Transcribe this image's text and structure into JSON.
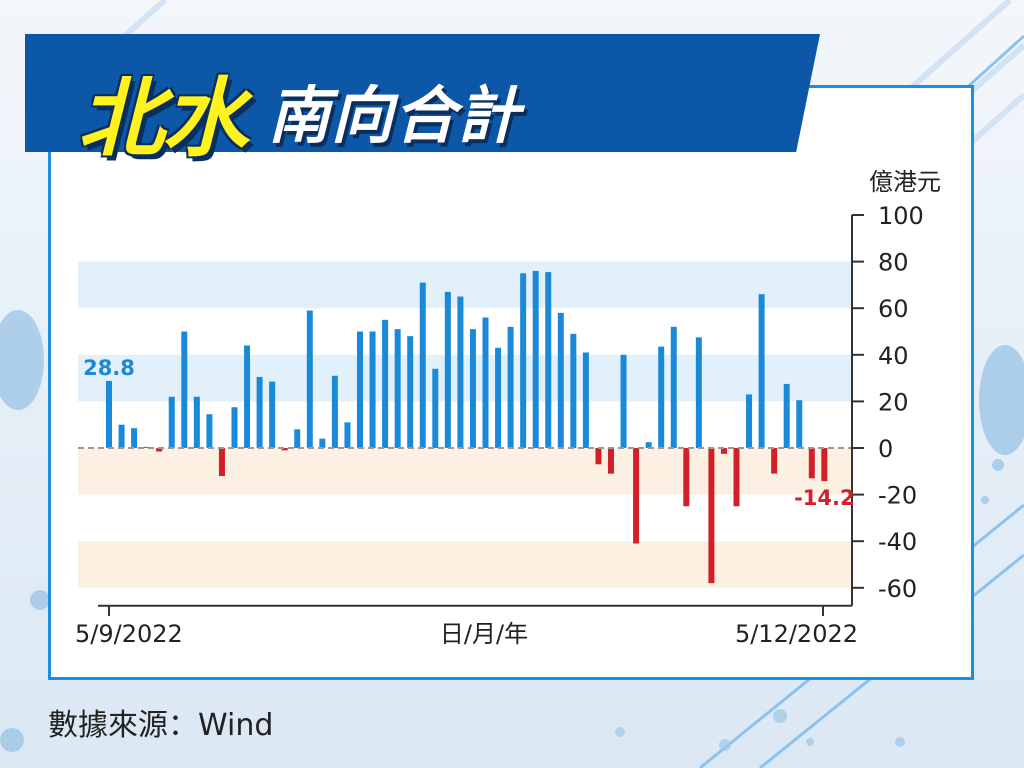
{
  "title": {
    "main": "北水",
    "sub": "南向合計"
  },
  "source": "數據來源：Wind",
  "chart_data": {
    "type": "bar",
    "unit": "億港元",
    "xlabel": "日/月/年",
    "x_start": "5/9/2022",
    "x_end": "5/12/2022",
    "ylim": [
      -60,
      100
    ],
    "yticks": [
      100,
      80,
      60,
      40,
      20,
      0,
      -20,
      -40,
      -60
    ],
    "values": [
      28.8,
      10,
      8.5,
      0.5,
      -1.5,
      22,
      50,
      22,
      14.5,
      -12,
      17.5,
      44,
      30.5,
      28.5,
      -1,
      8,
      59,
      4,
      31,
      11,
      50,
      50,
      55,
      51,
      48,
      71,
      34,
      67,
      65,
      51,
      56,
      43,
      52,
      75,
      76,
      75.5,
      58,
      49,
      41,
      -7,
      -11,
      40,
      -41,
      2.5,
      43.5,
      52,
      -25,
      47.5,
      -58,
      -2.5,
      -25,
      23,
      66,
      -11,
      27.5,
      20.5,
      -13,
      -14.2
    ],
    "labels": {
      "first": "28.8",
      "last": "-14.2"
    },
    "colors": {
      "positive": "#1a8ad8",
      "negative": "#d2202a",
      "first_label": "#1a8ad8",
      "last_label": "#d2202a"
    },
    "bands": [
      {
        "from": 60,
        "to": 80,
        "color": "#e2f0fb"
      },
      {
        "from": 20,
        "to": 40,
        "color": "#e2f0fb"
      },
      {
        "from": -20,
        "to": 0,
        "color": "#fbf0e2"
      },
      {
        "from": -60,
        "to": -40,
        "color": "#fbf0e2"
      }
    ],
    "zero_line": "dashed",
    "axis_side": "right"
  }
}
